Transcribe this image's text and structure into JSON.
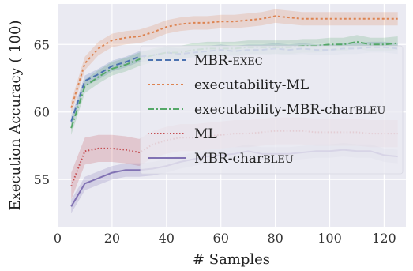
{
  "chart_data": {
    "type": "line",
    "xlabel": "# Samples",
    "ylabel": "Execution Accuracy (   100)",
    "xlim": [
      0,
      128
    ],
    "ylim": [
      51.5,
      68
    ],
    "xticks": [
      0,
      20,
      40,
      60,
      80,
      100,
      120
    ],
    "yticks": [
      55,
      60,
      65
    ],
    "grid": true,
    "legend_position": "center-right",
    "x": [
      5,
      10,
      15,
      20,
      25,
      30,
      35,
      40,
      45,
      50,
      55,
      60,
      65,
      70,
      75,
      80,
      85,
      90,
      95,
      100,
      105,
      110,
      115,
      120,
      125
    ],
    "series": [
      {
        "name": "MBR-EXEC",
        "label_main": "MBR-",
        "label_sc": "EXEC",
        "color": "#4c72b0",
        "dash": "7,4",
        "values": [
          59.3,
          62.3,
          62.8,
          63.4,
          63.7,
          64.1,
          64.2,
          64.4,
          64.3,
          64.4,
          64.5,
          64.6,
          64.5,
          64.6,
          64.6,
          64.7,
          64.6,
          64.7,
          64.6,
          64.6,
          64.7,
          64.7,
          64.8,
          64.8,
          64.7
        ],
        "band": 0.4
      },
      {
        "name": "executability-ML",
        "label_main": "executability-ML",
        "label_sc": "",
        "color": "#dd8452",
        "dash": "3,3",
        "values": [
          60.3,
          63.6,
          64.7,
          65.3,
          65.5,
          65.6,
          65.9,
          66.3,
          66.5,
          66.6,
          66.6,
          66.7,
          66.7,
          66.8,
          66.9,
          67.1,
          67.0,
          66.9,
          66.9,
          66.9,
          66.9,
          66.9,
          66.9,
          66.9,
          66.9
        ],
        "band": 0.5
      },
      {
        "name": "executability-MBR-charBLEU",
        "label_main": "executability-MBR-char",
        "label_sc": "BLEU",
        "color": "#55a868",
        "dash": "8,3,2,3",
        "values": [
          58.8,
          61.9,
          62.6,
          63.2,
          63.5,
          63.9,
          64.2,
          64.4,
          64.4,
          64.6,
          64.7,
          64.7,
          64.7,
          64.8,
          64.8,
          64.8,
          64.8,
          64.9,
          64.9,
          65.0,
          65.0,
          65.2,
          65.0,
          65.0,
          65.1
        ],
        "band": 0.5
      },
      {
        "name": "ML",
        "label_main": "ML",
        "label_sc": "",
        "color": "#c44e52",
        "dash": "1.5,2.5",
        "values": [
          54.5,
          57.1,
          57.3,
          57.3,
          57.2,
          57.0,
          57.6,
          57.9,
          58.1,
          58.1,
          58.2,
          58.3,
          58.4,
          58.4,
          58.5,
          58.6,
          58.6,
          58.6,
          58.5,
          58.5,
          58.5,
          58.5,
          58.4,
          58.4,
          58.4
        ],
        "band": 1.0
      },
      {
        "name": "MBR-charBLEU",
        "label_main": "MBR-char",
        "label_sc": "BLEU",
        "color": "#8172b3",
        "dash": "",
        "values": [
          53.0,
          54.7,
          55.1,
          55.5,
          55.7,
          55.7,
          55.8,
          56.0,
          56.3,
          56.5,
          56.7,
          56.8,
          56.9,
          57.1,
          56.9,
          56.9,
          56.9,
          57.0,
          57.1,
          57.1,
          57.2,
          57.1,
          57.1,
          56.8,
          56.7
        ],
        "band": 0.5
      }
    ]
  }
}
